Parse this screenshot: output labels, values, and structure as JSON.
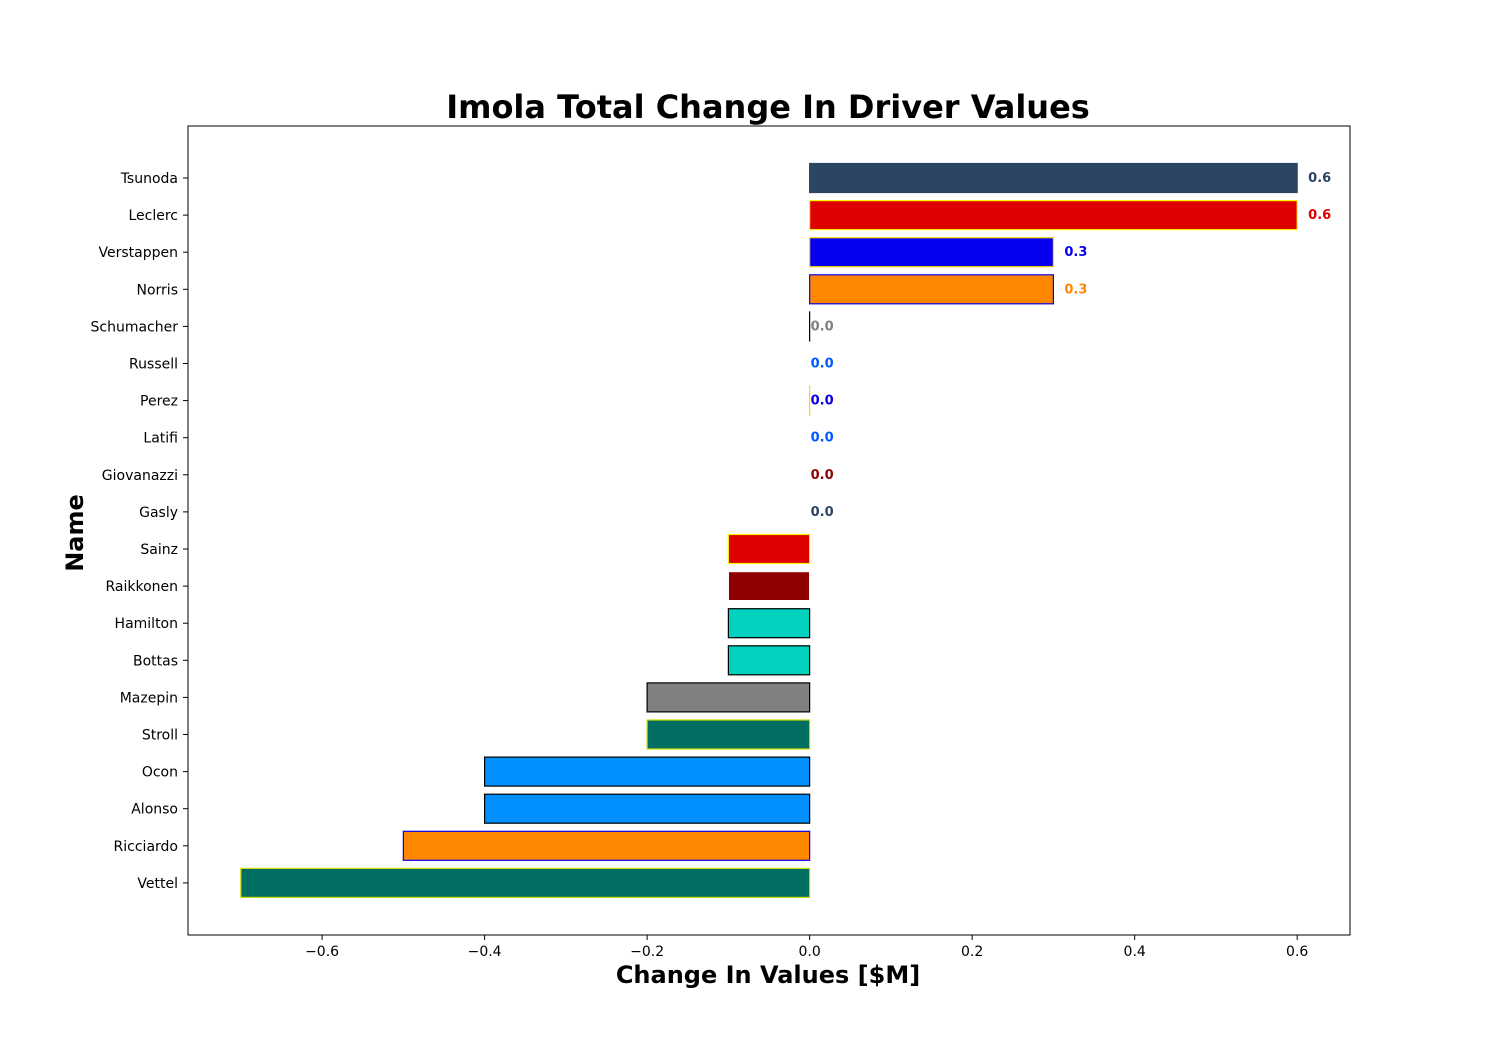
{
  "chart_data": {
    "type": "bar",
    "orientation": "horizontal",
    "title": "Imola Total Change In Driver Values",
    "xlabel": "Change In Values [$M]",
    "ylabel": "Name",
    "xlim": [
      -0.765,
      0.665
    ],
    "xticks": [
      -0.6,
      -0.4,
      -0.2,
      0.0,
      0.2,
      0.4,
      0.6
    ],
    "xtick_labels": [
      "−0.6",
      "−0.4",
      "−0.2",
      "0.0",
      "0.2",
      "0.4",
      "0.6"
    ],
    "grid": false,
    "bars": [
      {
        "name": "Tsunoda",
        "value": 0.6,
        "fill": "#2b4562",
        "edge": "#2b4562",
        "label": "0.6",
        "label_color": "#2b4562"
      },
      {
        "name": "Leclerc",
        "value": 0.6,
        "fill": "#dc0000",
        "edge": "#fff500",
        "label": "0.6",
        "label_color": "#dc0000"
      },
      {
        "name": "Verstappen",
        "value": 0.3,
        "fill": "#0600ef",
        "edge": "#ffd700",
        "label": "0.3",
        "label_color": "#0600ef"
      },
      {
        "name": "Norris",
        "value": 0.3,
        "fill": "#ff8700",
        "edge": "#0600ef",
        "label": "0.3",
        "label_color": "#ff8700"
      },
      {
        "name": "Schumacher",
        "value": 0.0,
        "fill": "#808080",
        "edge": "#000000",
        "label": "0.0",
        "label_color": "#808080"
      },
      {
        "name": "Russell",
        "value": 0.0,
        "fill": "#0059ff",
        "edge": "#ffffff",
        "label": "0.0",
        "label_color": "#0059ff"
      },
      {
        "name": "Perez",
        "value": 0.0,
        "fill": "#0600ef",
        "edge": "#ffd700",
        "label": "0.0",
        "label_color": "#0600ef"
      },
      {
        "name": "Latifi",
        "value": 0.0,
        "fill": "#0059ff",
        "edge": "#ffffff",
        "label": "0.0",
        "label_color": "#0059ff"
      },
      {
        "name": "Giovanazzi",
        "value": 0.0,
        "fill": "#900000",
        "edge": "#ffffff",
        "label": "0.0",
        "label_color": "#900000"
      },
      {
        "name": "Gasly",
        "value": 0.0,
        "fill": "#2b4562",
        "edge": "#ffffff",
        "label": "0.0",
        "label_color": "#2b4562"
      },
      {
        "name": "Sainz",
        "value": -0.1,
        "fill": "#dc0000",
        "edge": "#fff500",
        "label": "",
        "label_color": "#dc0000"
      },
      {
        "name": "Raikkonen",
        "value": -0.1,
        "fill": "#900000",
        "edge": "#ffffff",
        "label": "",
        "label_color": "#900000"
      },
      {
        "name": "Hamilton",
        "value": -0.1,
        "fill": "#00d2be",
        "edge": "#000000",
        "label": "",
        "label_color": "#00d2be"
      },
      {
        "name": "Bottas",
        "value": -0.1,
        "fill": "#00d2be",
        "edge": "#000000",
        "label": "",
        "label_color": "#00d2be"
      },
      {
        "name": "Mazepin",
        "value": -0.2,
        "fill": "#808080",
        "edge": "#000000",
        "label": "",
        "label_color": "#808080"
      },
      {
        "name": "Stroll",
        "value": -0.2,
        "fill": "#006f62",
        "edge": "#cedc00",
        "label": "",
        "label_color": "#006f62"
      },
      {
        "name": "Ocon",
        "value": -0.4,
        "fill": "#0090ff",
        "edge": "#000000",
        "label": "",
        "label_color": "#0090ff"
      },
      {
        "name": "Alonso",
        "value": -0.4,
        "fill": "#0090ff",
        "edge": "#000000",
        "label": "",
        "label_color": "#0090ff"
      },
      {
        "name": "Ricciardo",
        "value": -0.5,
        "fill": "#ff8700",
        "edge": "#0600ef",
        "label": "",
        "label_color": "#ff8700"
      },
      {
        "name": "Vettel",
        "value": -0.7,
        "fill": "#006f62",
        "edge": "#cedc00",
        "label": "",
        "label_color": "#006f62"
      }
    ]
  }
}
